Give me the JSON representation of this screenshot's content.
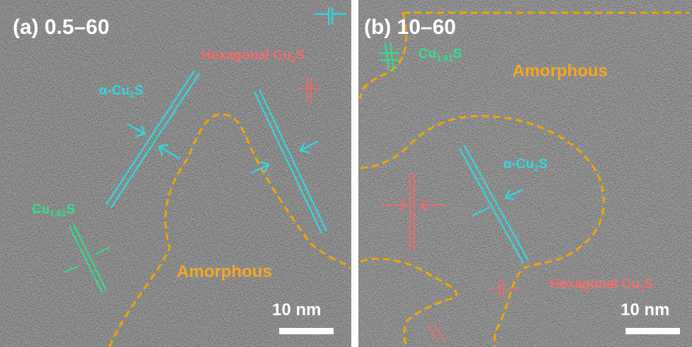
{
  "panels": [
    {
      "label": "(a) 0.5–60",
      "scale_bar": "10 nm",
      "amorphous": "Amorphous",
      "phases": [
        {
          "text": "Hexagonal Cu",
          "sub": "2",
          "tail": "S"
        },
        {
          "text": "α-Cu",
          "sub": "2",
          "tail": "S"
        },
        {
          "text": "Cu",
          "sub": "1.81",
          "tail": "S"
        }
      ]
    },
    {
      "label": "(b) 10–60",
      "scale_bar": "10 nm",
      "amorphous": "Amorphous",
      "phases": [
        {
          "text": "Cu",
          "sub": "1.81",
          "tail": "S"
        },
        {
          "text": "α-Cu",
          "sub": "2",
          "tail": "S"
        },
        {
          "text": "Hexagonal Cu",
          "sub": "2",
          "tail": "S"
        }
      ]
    }
  ]
}
